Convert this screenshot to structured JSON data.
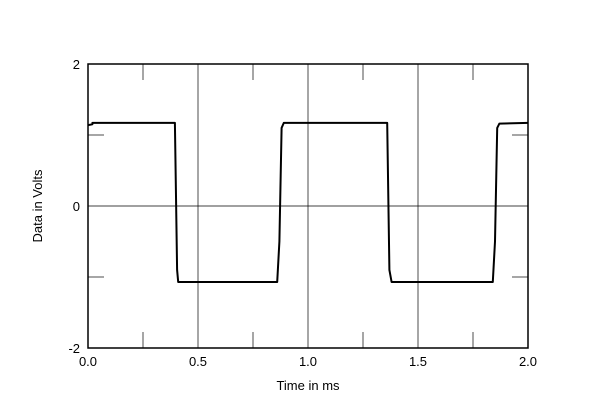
{
  "chart_data": {
    "type": "line",
    "title": "",
    "xlabel": "Time in ms",
    "ylabel": "Data in Volts",
    "xlim": [
      0.0,
      2.0
    ],
    "ylim": [
      -2,
      2
    ],
    "x_ticks": [
      0.0,
      0.5,
      1.0,
      1.5,
      2.0
    ],
    "x_tick_labels": [
      "0.0",
      "0.5",
      "1.0",
      "1.5",
      "2.0"
    ],
    "y_ticks": [
      -2,
      0,
      2
    ],
    "y_tick_labels": [
      "-2",
      "0",
      "2"
    ],
    "grid": true,
    "legend": "none",
    "series": [
      {
        "color": "#000000",
        "x": [
          0.0,
          0.02,
          0.02,
          0.395,
          0.405,
          0.41,
          0.42,
          0.86,
          0.87,
          0.88,
          0.89,
          1.36,
          1.37,
          1.38,
          1.39,
          1.84,
          1.85,
          1.86,
          1.87,
          2.0
        ],
        "y": [
          1.14,
          1.15,
          1.17,
          1.17,
          -0.9,
          -1.07,
          -1.07,
          -1.07,
          -0.5,
          1.1,
          1.17,
          1.17,
          -0.9,
          -1.07,
          -1.07,
          -1.07,
          -0.5,
          1.1,
          1.16,
          1.17
        ]
      }
    ]
  }
}
